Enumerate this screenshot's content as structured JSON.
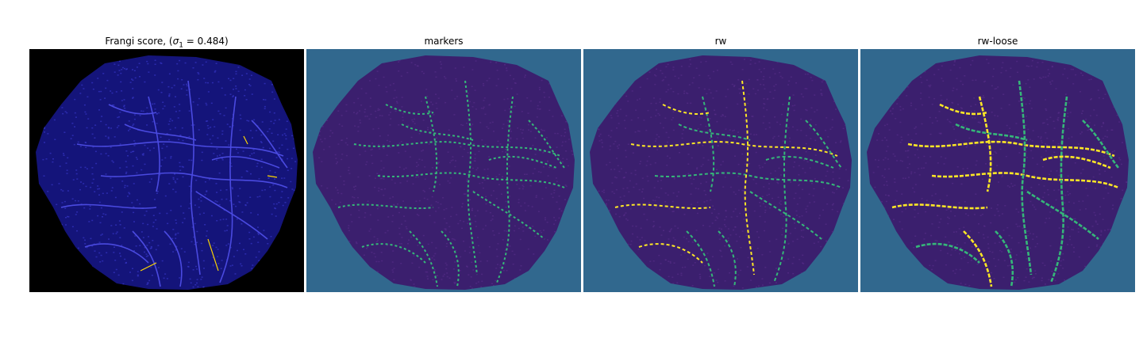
{
  "panels": [
    {
      "key": "frangi",
      "title_prefix": "Frangi score, (",
      "sigma_symbol": "σ",
      "sigma_sub": "1",
      "title_suffix": " = 0.484)",
      "background": "#000000",
      "blob_fill": "#14147a",
      "accent": "#ffd700"
    },
    {
      "key": "markers",
      "title": "markers",
      "background": "#31688e",
      "blob_fill": "#3b1f6e",
      "accent": "#35b779"
    },
    {
      "key": "rw",
      "title": "rw",
      "background": "#31688e",
      "blob_fill": "#3b1f6e",
      "accent": "#fde725"
    },
    {
      "key": "rw_loose",
      "title": "rw-loose",
      "background": "#31688e",
      "blob_fill": "#3b1f6e",
      "accent": "#fde725"
    }
  ]
}
